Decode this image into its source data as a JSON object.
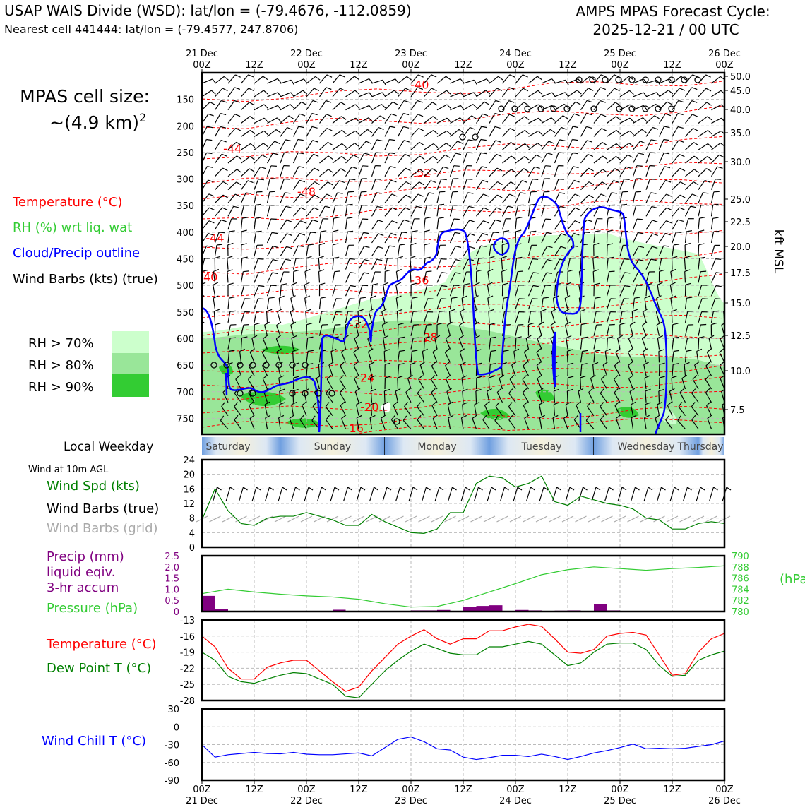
{
  "header": {
    "title_line1": "USAP WAIS Divide (WSD): lat/lon = (-79.4676, -112.0859)",
    "title_line2": "Nearest cell 441444: lat/lon = (-79.4577, 247.8706)",
    "cycle_line1": "AMPS MPAS Forecast Cycle:",
    "cycle_line2": "2025-12-21 / 00 UTC"
  },
  "legend": {
    "cell_size_line1": "MPAS cell size:",
    "cell_size_line2": "~(4.9 km)",
    "cell_size_sup": "2",
    "temperature": "Temperature (°C)",
    "rh": "RH (%) wrt liq. wat",
    "cloud": "Cloud/Precip outline",
    "wind_barbs": "Wind Barbs (kts) (true)",
    "rh_levels": [
      "RH > 70%",
      "RH > 80%",
      "RH > 90%"
    ],
    "local_weekday": "Local Weekday",
    "wind_10m_title": "Wind at 10m AGL",
    "wind_spd": "Wind Spd (kts)",
    "wind_barbs_true": "Wind Barbs (true)",
    "wind_barbs_grid": "Wind Barbs (grid)",
    "precip_1": "Precip (mm)",
    "precip_2": "liquid eqiv.",
    "precip_3": "3-hr accum",
    "pressure": "Pressure (hPa)",
    "temp2": "Temperature (°C)",
    "dewpoint": "Dew Point T (°C)",
    "windchill": "Wind Chill T (°C)"
  },
  "colors": {
    "red": "#ff0000",
    "green": "#008000",
    "lime": "#33cc33",
    "blue": "#0000ff",
    "purple": "#800080",
    "gray": "#aaaaaa",
    "rh70": "#ccffcc",
    "rh80": "#99e699",
    "rh90": "#33cc33"
  },
  "time_axis": {
    "top_ticks": [
      [
        "21 Dec",
        "00Z"
      ],
      [
        "",
        "12Z"
      ],
      [
        "22 Dec",
        "00Z"
      ],
      [
        "",
        "12Z"
      ],
      [
        "23 Dec",
        "00Z"
      ],
      [
        "",
        "12Z"
      ],
      [
        "24 Dec",
        "00Z"
      ],
      [
        "",
        "12Z"
      ],
      [
        "25 Dec",
        "00Z"
      ],
      [
        "",
        "12Z"
      ],
      [
        "26 Dec",
        "00Z"
      ]
    ],
    "bottom_ticks": [
      [
        "00Z",
        "21 Dec"
      ],
      [
        "12Z",
        ""
      ],
      [
        "00Z",
        "22 Dec"
      ],
      [
        "12Z",
        ""
      ],
      [
        "00Z",
        "23 Dec"
      ],
      [
        "12Z",
        ""
      ],
      [
        "00Z",
        "24 Dec"
      ],
      [
        "12Z",
        ""
      ],
      [
        "00Z",
        "25 Dec"
      ],
      [
        "12Z",
        ""
      ],
      [
        "00Z",
        "26 Dec"
      ]
    ]
  },
  "chart_data": [
    {
      "type": "time-height cross section",
      "x_range_hours": [
        0,
        120
      ],
      "pressure_levels_hpa": [
        150,
        200,
        250,
        300,
        350,
        400,
        450,
        500,
        550,
        600,
        650,
        700,
        750
      ],
      "y_range_hpa": [
        100,
        780
      ],
      "height_kft": [
        50.0,
        45.0,
        40.0,
        35.0,
        30.0,
        25.0,
        22.5,
        20.0,
        17.5,
        15.0,
        12.5,
        10.0,
        7.5
      ],
      "height_label": "kft MSL",
      "temperature_labels": [
        {
          "t": 50,
          "p": 122,
          "label": "-40"
        },
        {
          "t": 7,
          "p": 242,
          "label": "-44"
        },
        {
          "t": 24,
          "p": 323,
          "label": "-48"
        },
        {
          "t": 50.5,
          "p": 288,
          "label": "-52"
        },
        {
          "t": 3,
          "p": 410,
          "label": "-44"
        },
        {
          "t": 1.5,
          "p": 484,
          "label": "-40"
        },
        {
          "t": 50,
          "p": 490,
          "label": "-36"
        },
        {
          "t": 36,
          "p": 573,
          "label": "-32"
        },
        {
          "t": 52,
          "p": 597,
          "label": "-28"
        },
        {
          "t": 37.5,
          "p": 673,
          "label": "-24"
        },
        {
          "t": 38.5,
          "p": 728,
          "label": "-20"
        },
        {
          "t": 35,
          "p": 768,
          "label": "-16"
        }
      ]
    },
    {
      "type": "weekday band",
      "days": [
        "Saturday",
        "Sunday",
        "Monday",
        "Tuesday",
        "Wednesday",
        "Thursday"
      ]
    },
    {
      "type": "line",
      "name": "Wind at 10m AGL",
      "ylim": [
        0,
        24
      ],
      "yticks": [
        0,
        4,
        8,
        12,
        16,
        20,
        24
      ],
      "x_hours": [
        0,
        3,
        6,
        9,
        12,
        15,
        18,
        21,
        24,
        27,
        30,
        33,
        36,
        39,
        42,
        45,
        48,
        51,
        54,
        57,
        60,
        63,
        66,
        69,
        72,
        75,
        78,
        81,
        84,
        87,
        90,
        93,
        96,
        99,
        102,
        105,
        108,
        111,
        114,
        117,
        120
      ],
      "wind_speed_kts": [
        7.5,
        16,
        10,
        6.5,
        6,
        8,
        8.5,
        8.5,
        9.5,
        8.5,
        7.5,
        6,
        6,
        9,
        7,
        5.5,
        4,
        3.8,
        5,
        9.5,
        9.5,
        17.5,
        19.5,
        19,
        16.5,
        17.5,
        19.5,
        12.5,
        11.5,
        14,
        13,
        12,
        11.5,
        10.5,
        8,
        7.5,
        5,
        5,
        6.5,
        7,
        6.5
      ],
      "true_barbs_hours": [
        0,
        48
      ],
      "grid_barbs_hours": [
        0,
        48,
        120
      ]
    },
    {
      "type": "bar+line",
      "name": "Precip / Pressure",
      "precip_ylim": [
        0,
        2.5
      ],
      "precip_yticks": [
        0,
        0.5,
        1.0,
        1.5,
        2.0,
        2.5
      ],
      "pressure_ylim": [
        780,
        790
      ],
      "pressure_yticks": [
        780,
        782,
        784,
        786,
        788,
        790
      ],
      "precip_bins_hours": [
        0,
        3,
        6,
        9,
        12,
        15,
        18,
        21,
        24,
        27,
        30,
        33,
        36,
        39,
        42,
        45,
        48,
        51,
        54,
        57,
        60,
        63,
        66,
        69,
        72,
        75,
        78,
        81,
        84,
        87,
        90,
        93,
        96,
        99,
        102,
        105,
        108,
        111,
        114,
        117
      ],
      "precip_mm": [
        0.7,
        0.12,
        0,
        0,
        0,
        0,
        0,
        0,
        0,
        0,
        0.08,
        0,
        0,
        0,
        0.03,
        0,
        0.05,
        0.05,
        0.07,
        0,
        0.2,
        0.25,
        0.28,
        0,
        0.07,
        0.05,
        0.02,
        0.04,
        0.05,
        0,
        0.32,
        0.05,
        0,
        0,
        0,
        0,
        0,
        0,
        0,
        0
      ],
      "pressure_x_hours": [
        0,
        6,
        12,
        18,
        24,
        30,
        36,
        42,
        48,
        54,
        60,
        66,
        72,
        78,
        84,
        90,
        96,
        102,
        108,
        114,
        120
      ],
      "pressure_hpa": [
        783.2,
        784.0,
        783.5,
        783.1,
        782.8,
        782.6,
        782.2,
        781.4,
        780.8,
        780.9,
        782.0,
        783.5,
        785.0,
        786.6,
        787.5,
        788.0,
        787.7,
        787.4,
        787.7,
        787.9,
        788.2
      ]
    },
    {
      "type": "line",
      "name": "Temperature / Dew Point",
      "ylim": [
        -28,
        -13
      ],
      "yticks": [
        -28,
        -25,
        -22,
        -19,
        -16,
        -13
      ],
      "x_hours": [
        0,
        3,
        6,
        9,
        12,
        15,
        18,
        21,
        24,
        27,
        30,
        33,
        36,
        39,
        42,
        45,
        48,
        51,
        54,
        57,
        60,
        63,
        66,
        69,
        72,
        75,
        78,
        81,
        84,
        87,
        90,
        93,
        96,
        99,
        102,
        105,
        108,
        111,
        114,
        117,
        120
      ],
      "temperature_c": [
        -16,
        -18,
        -22,
        -24,
        -24,
        -21.8,
        -21,
        -20.5,
        -20.5,
        -22.5,
        -24.5,
        -26.3,
        -25.5,
        -22.5,
        -20,
        -17.5,
        -16,
        -14.8,
        -16.5,
        -17.5,
        -16.5,
        -16.5,
        -15,
        -15,
        -14.3,
        -13.8,
        -14.2,
        -16.5,
        -19,
        -19.2,
        -18.5,
        -16,
        -15.5,
        -15.3,
        -15.8,
        -19.5,
        -23.3,
        -23,
        -19,
        -16.5,
        -15.5
      ],
      "dewpoint_c": [
        -19,
        -20.5,
        -23.5,
        -24.5,
        -24.8,
        -24,
        -23.3,
        -22.8,
        -23,
        -24,
        -25,
        -27.2,
        -27.5,
        -25,
        -22.5,
        -20.5,
        -18.8,
        -17.5,
        -18.3,
        -19.2,
        -19.5,
        -19.5,
        -18,
        -18,
        -17.5,
        -17,
        -17.5,
        -19.5,
        -21.5,
        -21,
        -19,
        -17.5,
        -17.3,
        -17.3,
        -18.5,
        -21.5,
        -23.5,
        -23.3,
        -20.5,
        -19.5,
        -18.8
      ]
    },
    {
      "type": "line",
      "name": "Wind Chill",
      "ylim": [
        -90,
        30
      ],
      "yticks": [
        -90,
        -60,
        -30,
        0,
        30
      ],
      "x_hours": [
        0,
        3,
        6,
        9,
        12,
        15,
        18,
        21,
        24,
        27,
        30,
        33,
        36,
        39,
        42,
        45,
        48,
        51,
        54,
        57,
        60,
        63,
        66,
        69,
        72,
        75,
        78,
        81,
        84,
        87,
        90,
        93,
        96,
        99,
        102,
        105,
        108,
        111,
        114,
        117,
        120
      ],
      "windchill_c": [
        -30,
        -51,
        -47,
        -45,
        -43,
        -45,
        -45.5,
        -43,
        -46,
        -47,
        -47,
        -45.5,
        -44,
        -49,
        -35,
        -21,
        -17,
        -25,
        -37,
        -39,
        -51,
        -55,
        -52,
        -48,
        -48,
        -50,
        -46,
        -50,
        -55,
        -50,
        -44,
        -40,
        -35,
        -29,
        -37,
        -36,
        -37,
        -36,
        -33,
        -30,
        -24
      ]
    }
  ]
}
